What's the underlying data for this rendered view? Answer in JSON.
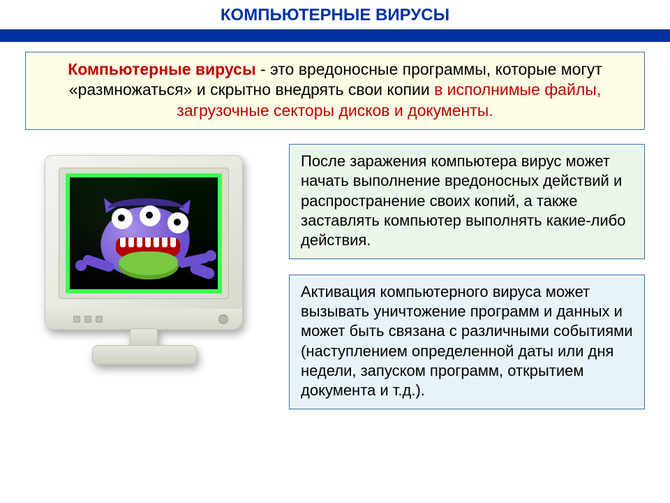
{
  "title": "КОМПЬЮТЕРНЫЕ ВИРУСЫ",
  "definition": {
    "term": "Компьютерные вирусы",
    "mid": " - это вредоносные программы, которые могут «размножаться» и скрытно внедрять свои копии ",
    "targets": "в исполнимые файлы, загрузочные секторы дисков и документы."
  },
  "box_after_infection": "  После заражения компьютера вирус может начать выполнение вредоносных действий и распространение своих копий, а также заставлять компьютер выполнять какие-либо действия.",
  "box_activation": "  Активация компьютерного вируса может вызывать уничтожение программ и данных и может быть связана с различными событиями (наступлением определенной даты или дня недели, запуском программ, открытием документа и т.д.).",
  "colors": {
    "title": "#0033a0",
    "band": "#0033a0",
    "def_bg": "#fdfce4",
    "border": "#3a6fb7",
    "red": "#c00000",
    "green_bg": "#eaf6e9",
    "blue_bg": "#e8f3f9"
  }
}
